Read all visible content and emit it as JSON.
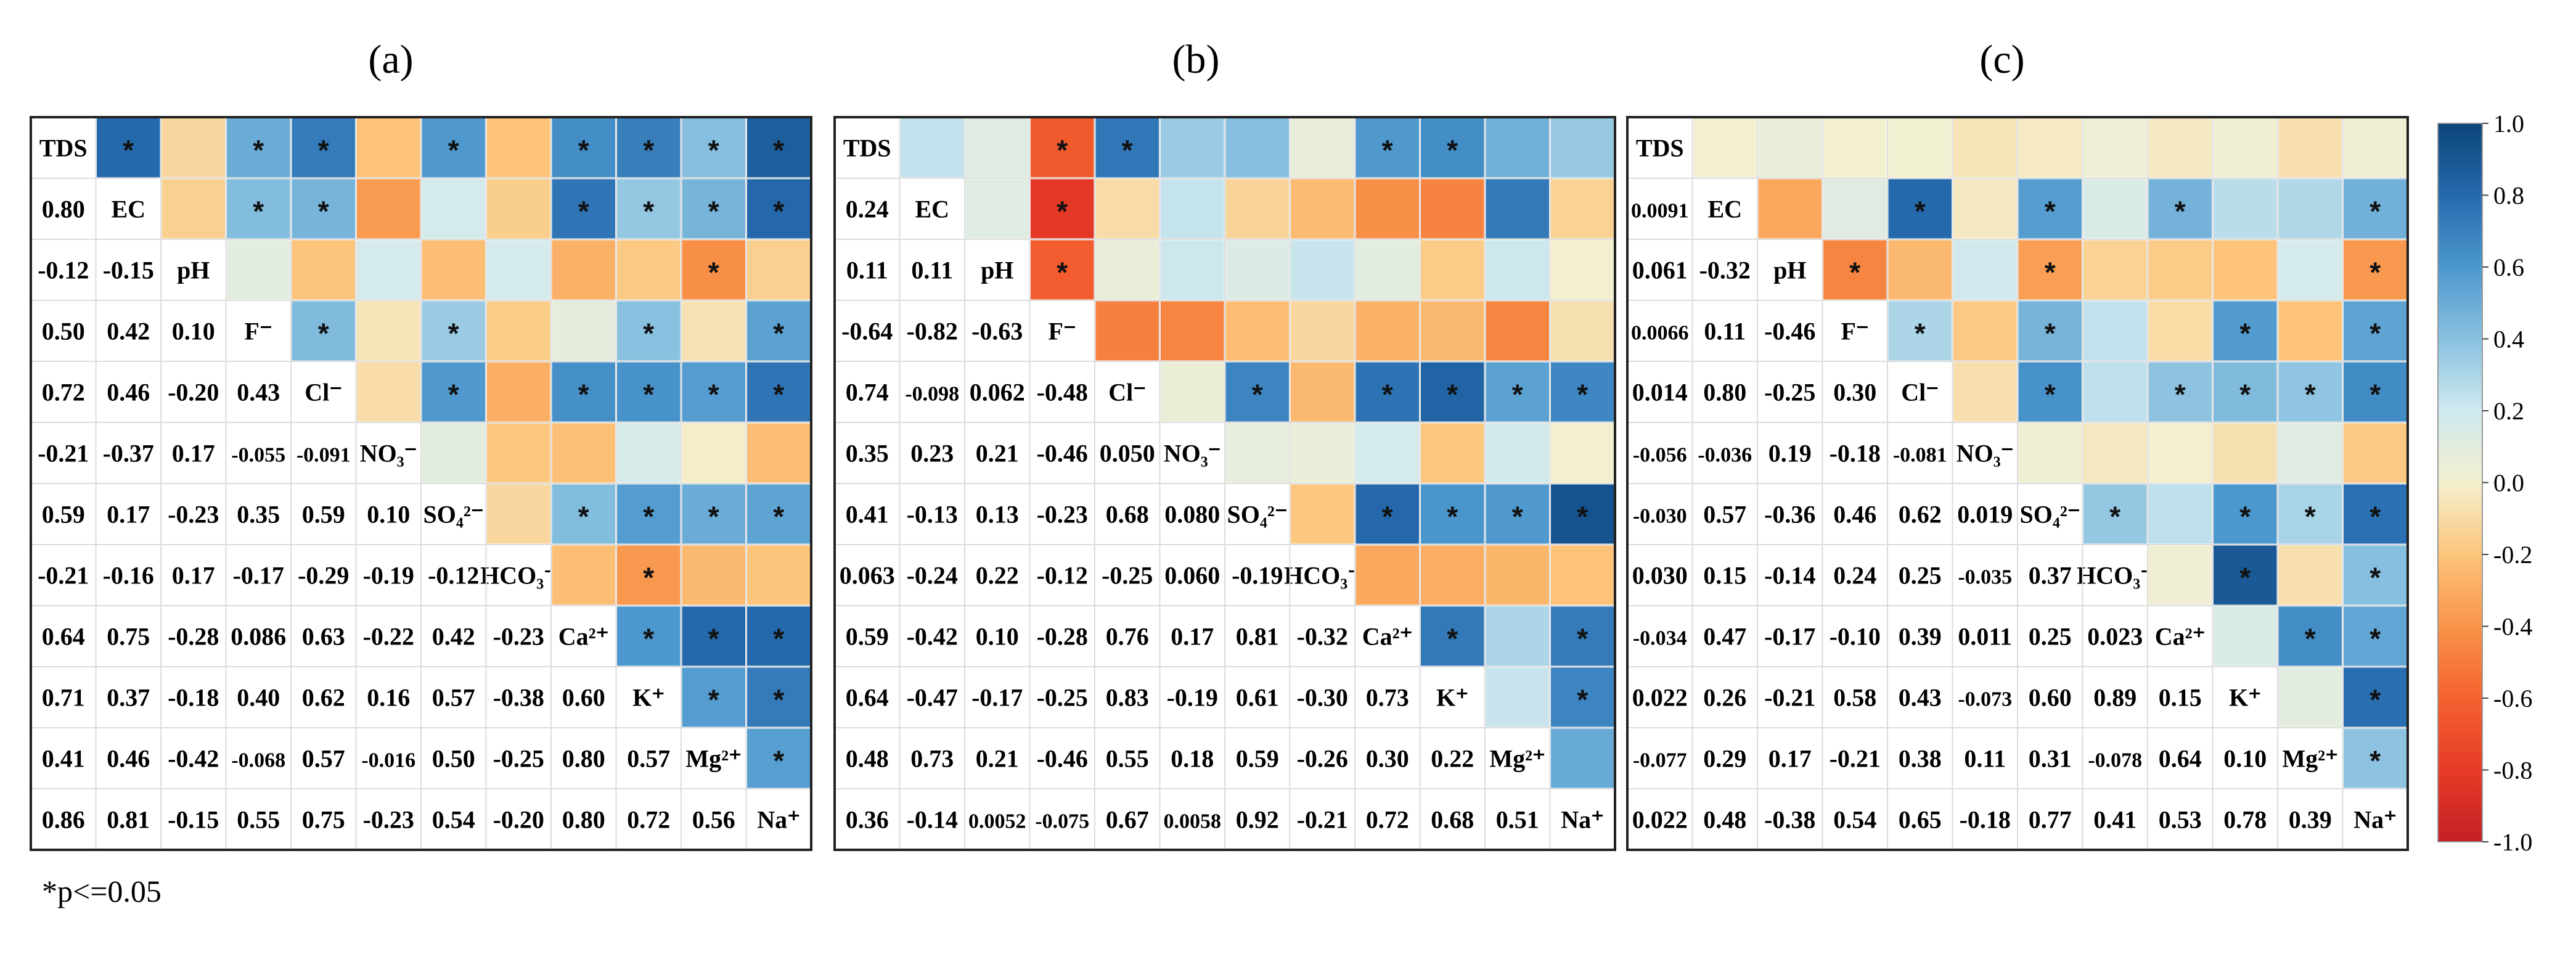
{
  "figure": {
    "note": "*p<=0.05"
  },
  "colorbar": {
    "ticks": [
      "1.0",
      "0.8",
      "0.6",
      "0.4",
      "0.2",
      "0.0",
      "-0.2",
      "-0.4",
      "-0.6",
      "-0.8",
      "-1.0"
    ],
    "min": -1.0,
    "max": 1.0,
    "colors": {
      "-1.0": "#c42026",
      "-0.8": "#e63b26",
      "-0.6": "#f4622f",
      "-0.4": "#f8944a",
      "-0.2": "#fcc57b",
      "0.0": "#f4f0cf",
      "0.2": "#cfe9ef",
      "0.4": "#89c1e0",
      "0.6": "#4c97cd",
      "0.8": "#2569ad",
      "1.0": "#0c4579"
    }
  },
  "chart_data": [
    {
      "type": "heatmap",
      "title": "(a)",
      "variables": [
        "TDS",
        "EC",
        "pH",
        "F⁻",
        "Cl⁻",
        "NO₃⁻",
        "SO₄²⁻",
        "HCO₃⁻",
        "Ca²⁺",
        "K⁺",
        "Mg²⁺",
        "Na⁺"
      ],
      "lower_values": [
        [
          "0.80"
        ],
        [
          "-0.12",
          "-0.15"
        ],
        [
          "0.50",
          "0.42",
          "0.10"
        ],
        [
          "0.72",
          "0.46",
          "-0.20",
          "0.43"
        ],
        [
          "-0.21",
          "-0.37",
          "0.17",
          "-0.055",
          "-0.091"
        ],
        [
          "0.59",
          "0.17",
          "-0.23",
          "0.35",
          "0.59",
          "0.10"
        ],
        [
          "-0.21",
          "-0.16",
          "0.17",
          "-0.17",
          "-0.29",
          "-0.19",
          "-0.12"
        ],
        [
          "0.64",
          "0.75",
          "-0.28",
          "0.086",
          "0.63",
          "-0.22",
          "0.42",
          "-0.23"
        ],
        [
          "0.71",
          "0.37",
          "-0.18",
          "0.40",
          "0.62",
          "0.16",
          "0.57",
          "-0.38",
          "0.60"
        ],
        [
          "0.41",
          "0.46",
          "-0.42",
          "-0.068",
          "0.57",
          "-0.016",
          "0.50",
          "-0.25",
          "0.80",
          "0.57"
        ],
        [
          "0.86",
          "0.81",
          "-0.15",
          "0.55",
          "0.75",
          "-0.23",
          "0.54",
          "-0.20",
          "0.80",
          "0.72",
          "0.56"
        ]
      ],
      "significant": [
        [
          0,
          1
        ],
        [
          0,
          3
        ],
        [
          0,
          4
        ],
        [
          0,
          6
        ],
        [
          0,
          8
        ],
        [
          0,
          9
        ],
        [
          0,
          10
        ],
        [
          0,
          11
        ],
        [
          1,
          3
        ],
        [
          1,
          4
        ],
        [
          1,
          8
        ],
        [
          1,
          9
        ],
        [
          1,
          10
        ],
        [
          1,
          11
        ],
        [
          2,
          10
        ],
        [
          3,
          4
        ],
        [
          3,
          6
        ],
        [
          3,
          9
        ],
        [
          3,
          11
        ],
        [
          4,
          6
        ],
        [
          4,
          8
        ],
        [
          4,
          9
        ],
        [
          4,
          10
        ],
        [
          4,
          11
        ],
        [
          6,
          8
        ],
        [
          6,
          9
        ],
        [
          6,
          10
        ],
        [
          6,
          11
        ],
        [
          7,
          9
        ],
        [
          8,
          9
        ],
        [
          8,
          10
        ],
        [
          8,
          11
        ],
        [
          9,
          10
        ],
        [
          9,
          11
        ],
        [
          10,
          11
        ]
      ]
    },
    {
      "type": "heatmap",
      "title": "(b)",
      "variables": [
        "TDS",
        "EC",
        "pH",
        "F⁻",
        "Cl⁻",
        "NO₃⁻",
        "SO₄²⁻",
        "HCO₃⁻",
        "Ca²⁺",
        "K⁺",
        "Mg²⁺",
        "Na⁺"
      ],
      "lower_values": [
        [
          "0.24"
        ],
        [
          "0.11",
          "0.11"
        ],
        [
          "-0.64",
          "-0.82",
          "-0.63"
        ],
        [
          "0.74",
          "-0.098",
          "0.062",
          "-0.48"
        ],
        [
          "0.35",
          "0.23",
          "0.21",
          "-0.46",
          "0.050"
        ],
        [
          "0.41",
          "-0.13",
          "0.13",
          "-0.23",
          "0.68",
          "0.080"
        ],
        [
          "0.063",
          "-0.24",
          "0.22",
          "-0.12",
          "-0.25",
          "0.060",
          "-0.19"
        ],
        [
          "0.59",
          "-0.42",
          "0.10",
          "-0.28",
          "0.76",
          "0.17",
          "0.81",
          "-0.32"
        ],
        [
          "0.64",
          "-0.47",
          "-0.17",
          "-0.25",
          "0.83",
          "-0.19",
          "0.61",
          "-0.30",
          "0.73"
        ],
        [
          "0.48",
          "0.73",
          "0.21",
          "-0.46",
          "0.55",
          "0.18",
          "0.59",
          "-0.26",
          "0.30",
          "0.22"
        ],
        [
          "0.36",
          "-0.14",
          "0.0052",
          "-0.075",
          "0.67",
          "0.0058",
          "0.92",
          "-0.21",
          "0.72",
          "0.68",
          "0.51"
        ]
      ],
      "significant": [
        [
          0,
          3
        ],
        [
          0,
          4
        ],
        [
          0,
          8
        ],
        [
          0,
          9
        ],
        [
          1,
          3
        ],
        [
          2,
          3
        ],
        [
          4,
          6
        ],
        [
          4,
          8
        ],
        [
          4,
          9
        ],
        [
          4,
          10
        ],
        [
          4,
          11
        ],
        [
          6,
          8
        ],
        [
          6,
          9
        ],
        [
          6,
          10
        ],
        [
          6,
          11
        ],
        [
          8,
          9
        ],
        [
          8,
          11
        ],
        [
          9,
          11
        ]
      ]
    },
    {
      "type": "heatmap",
      "title": "(c)",
      "variables": [
        "TDS",
        "EC",
        "pH",
        "F⁻",
        "Cl⁻",
        "NO₃⁻",
        "SO₄²⁻",
        "HCO₃⁻",
        "Ca²⁺",
        "K⁺",
        "Mg²⁺",
        "Na⁺"
      ],
      "lower_values": [
        [
          "0.0091"
        ],
        [
          "0.061",
          "-0.32"
        ],
        [
          "0.0066",
          "0.11",
          "-0.46"
        ],
        [
          "0.014",
          "0.80",
          "-0.25",
          "0.30"
        ],
        [
          "-0.056",
          "-0.036",
          "0.19",
          "-0.18",
          "-0.081"
        ],
        [
          "-0.030",
          "0.57",
          "-0.36",
          "0.46",
          "0.62",
          "0.019"
        ],
        [
          "0.030",
          "0.15",
          "-0.14",
          "0.24",
          "0.25",
          "-0.035",
          "0.37"
        ],
        [
          "-0.034",
          "0.47",
          "-0.17",
          "-0.10",
          "0.39",
          "0.011",
          "0.25",
          "0.023"
        ],
        [
          "0.022",
          "0.26",
          "-0.21",
          "0.58",
          "0.43",
          "-0.073",
          "0.60",
          "0.89",
          "0.15"
        ],
        [
          "-0.077",
          "0.29",
          "0.17",
          "-0.21",
          "0.38",
          "0.11",
          "0.31",
          "-0.078",
          "0.64",
          "0.10"
        ],
        [
          "0.022",
          "0.48",
          "-0.38",
          "0.54",
          "0.65",
          "-0.18",
          "0.77",
          "0.41",
          "0.53",
          "0.78",
          "0.39"
        ]
      ],
      "significant": [
        [
          1,
          4
        ],
        [
          1,
          6
        ],
        [
          1,
          8
        ],
        [
          1,
          11
        ],
        [
          2,
          3
        ],
        [
          2,
          6
        ],
        [
          2,
          11
        ],
        [
          3,
          4
        ],
        [
          3,
          6
        ],
        [
          3,
          9
        ],
        [
          3,
          11
        ],
        [
          4,
          6
        ],
        [
          4,
          8
        ],
        [
          4,
          9
        ],
        [
          4,
          10
        ],
        [
          4,
          11
        ],
        [
          6,
          7
        ],
        [
          6,
          9
        ],
        [
          6,
          10
        ],
        [
          6,
          11
        ],
        [
          7,
          9
        ],
        [
          7,
          11
        ],
        [
          8,
          10
        ],
        [
          8,
          11
        ],
        [
          9,
          11
        ],
        [
          10,
          11
        ]
      ]
    }
  ]
}
